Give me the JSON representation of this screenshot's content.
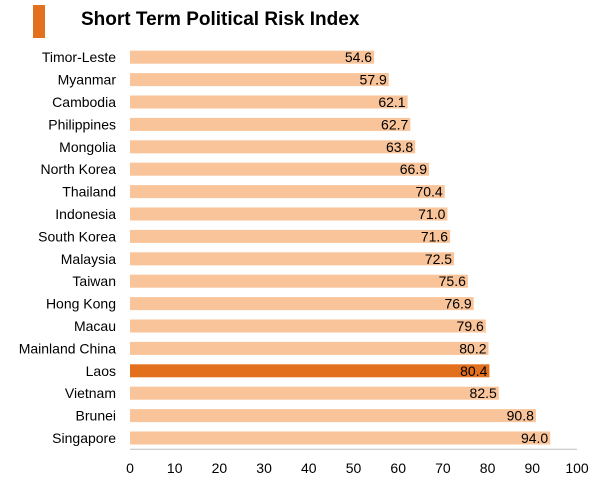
{
  "title": "Short Term Political Risk Index",
  "colors": {
    "bar": "#F9C499",
    "highlight_bar": "#E3701C",
    "title_mark": "#E3701C"
  },
  "chart_data": {
    "type": "bar",
    "orientation": "horizontal",
    "title": "Short Term Political Risk Index",
    "xlabel": "",
    "ylabel": "",
    "xlim": [
      0,
      100
    ],
    "x_ticks": [
      0,
      10,
      20,
      30,
      40,
      50,
      60,
      70,
      80,
      90,
      100
    ],
    "grid": false,
    "highlight": "Laos",
    "categories": [
      "Timor-Leste",
      "Myanmar",
      "Cambodia",
      "Philippines",
      "Mongolia",
      "North Korea",
      "Thailand",
      "Indonesia",
      "South Korea",
      "Malaysia",
      "Taiwan",
      "Hong Kong",
      "Macau",
      "Mainland China",
      "Laos",
      "Vietnam",
      "Brunei",
      "Singapore"
    ],
    "values": [
      54.6,
      57.9,
      62.1,
      62.7,
      63.8,
      66.9,
      70.4,
      71.0,
      71.6,
      72.5,
      75.6,
      76.9,
      79.6,
      80.2,
      80.4,
      82.5,
      90.8,
      94.0
    ],
    "value_labels": [
      "54.6",
      "57.9",
      "62.1",
      "62.7",
      "63.8",
      "66.9",
      "70.4",
      "71.0",
      "71.6",
      "72.5",
      "75.6",
      "76.9",
      "79.6",
      "80.2",
      "80.4",
      "82.5",
      "90.8",
      "94.0"
    ]
  }
}
